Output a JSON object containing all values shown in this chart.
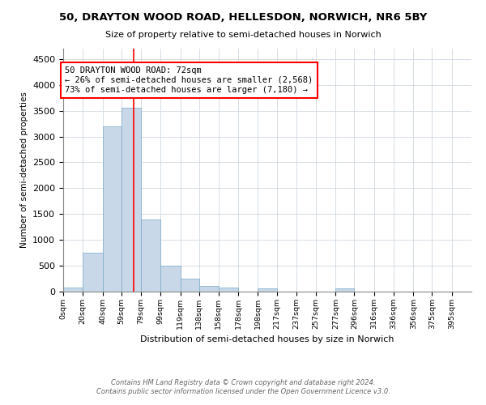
{
  "title1": "50, DRAYTON WOOD ROAD, HELLESDON, NORWICH, NR6 5BY",
  "title2": "Size of property relative to semi-detached houses in Norwich",
  "xlabel": "Distribution of semi-detached houses by size in Norwich",
  "ylabel": "Number of semi-detached properties",
  "footnote1": "Contains HM Land Registry data © Crown copyright and database right 2024.",
  "footnote2": "Contains public sector information licensed under the Open Government Licence v3.0.",
  "bin_labels": [
    "0sqm",
    "20sqm",
    "40sqm",
    "59sqm",
    "79sqm",
    "99sqm",
    "119sqm",
    "138sqm",
    "158sqm",
    "178sqm",
    "198sqm",
    "217sqm",
    "237sqm",
    "257sqm",
    "277sqm",
    "296sqm",
    "316sqm",
    "336sqm",
    "356sqm",
    "375sqm",
    "395sqm"
  ],
  "bar_heights": [
    75,
    750,
    3200,
    3550,
    1400,
    500,
    245,
    110,
    75,
    0,
    55,
    0,
    0,
    0,
    55,
    0,
    0,
    0,
    0,
    0,
    0
  ],
  "bar_color": "#c8d8e8",
  "bar_edge_color": "#7aa8c8",
  "grid_color": "#d0d8e0",
  "property_line_x": 72,
  "property_line_color": "red",
  "annotation_text": "50 DRAYTON WOOD ROAD: 72sqm\n← 26% of semi-detached houses are smaller (2,568)\n73% of semi-detached houses are larger (7,180) →",
  "ylim": [
    0,
    4700
  ],
  "yticks": [
    0,
    500,
    1000,
    1500,
    2000,
    2500,
    3000,
    3500,
    4000,
    4500
  ]
}
